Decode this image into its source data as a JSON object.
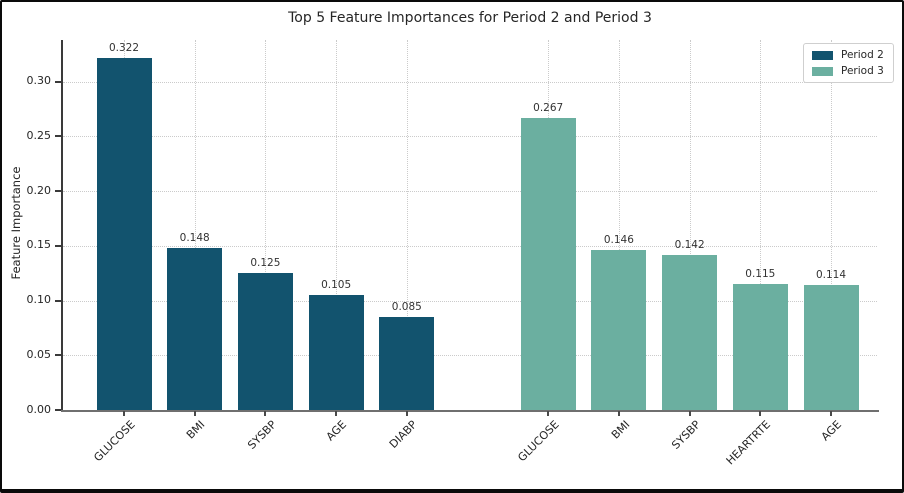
{
  "window": {
    "background": "#ffffff",
    "frame_color": "#0a0a0a"
  },
  "chart_data": {
    "type": "bar",
    "title": "Top 5 Feature Importances for Period 2 and Period 3",
    "xlabel": "",
    "ylabel": "Feature Importance",
    "ylim": [
      0,
      0.338
    ],
    "yticks": [
      0.0,
      0.05,
      0.1,
      0.15,
      0.2,
      0.25,
      0.3
    ],
    "grid": true,
    "grid_style": "dotted",
    "bar_labels": true,
    "group_gap_slots": 1,
    "legend": {
      "position": "upper right",
      "entries": [
        "Period 2",
        "Period 3"
      ]
    },
    "series": [
      {
        "name": "Period 2",
        "color": "#12536e",
        "categories": [
          "GLUCOSE",
          "BMI",
          "SYSBP",
          "AGE",
          "DIABP"
        ],
        "values": [
          0.322,
          0.148,
          0.125,
          0.105,
          0.085
        ]
      },
      {
        "name": "Period 3",
        "color": "#6bafa0",
        "categories": [
          "GLUCOSE",
          "BMI",
          "SYSBP",
          "HEARTRTE",
          "AGE"
        ],
        "values": [
          0.267,
          0.146,
          0.142,
          0.115,
          0.114
        ]
      }
    ]
  }
}
